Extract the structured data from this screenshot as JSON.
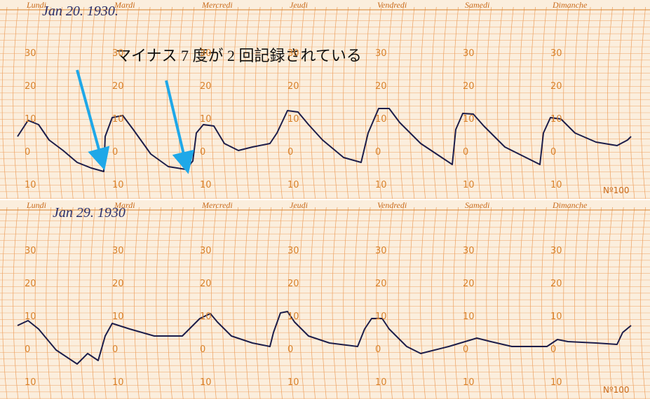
{
  "annotation": "マイナス 7 度が 2 回記録されている",
  "panels": [
    {
      "date": "Jan 20. 1930.",
      "days": [
        "Lundi",
        "Mardi",
        "Mercredi",
        "Jeudi",
        "Vendredi",
        "Samedi",
        "Dimanche"
      ],
      "temps": [
        "30",
        "20",
        "10",
        "0",
        "10"
      ],
      "serial": "Nº100"
    },
    {
      "date": "Jan 29. 1930",
      "days": [
        "Lundi",
        "Mardi",
        "Mercredi",
        "Jeudi",
        "Vendredi",
        "Samedi",
        "Dimanche"
      ],
      "temps": [
        "30",
        "20",
        "10",
        "0",
        "10"
      ],
      "serial": "Nº100"
    }
  ]
}
